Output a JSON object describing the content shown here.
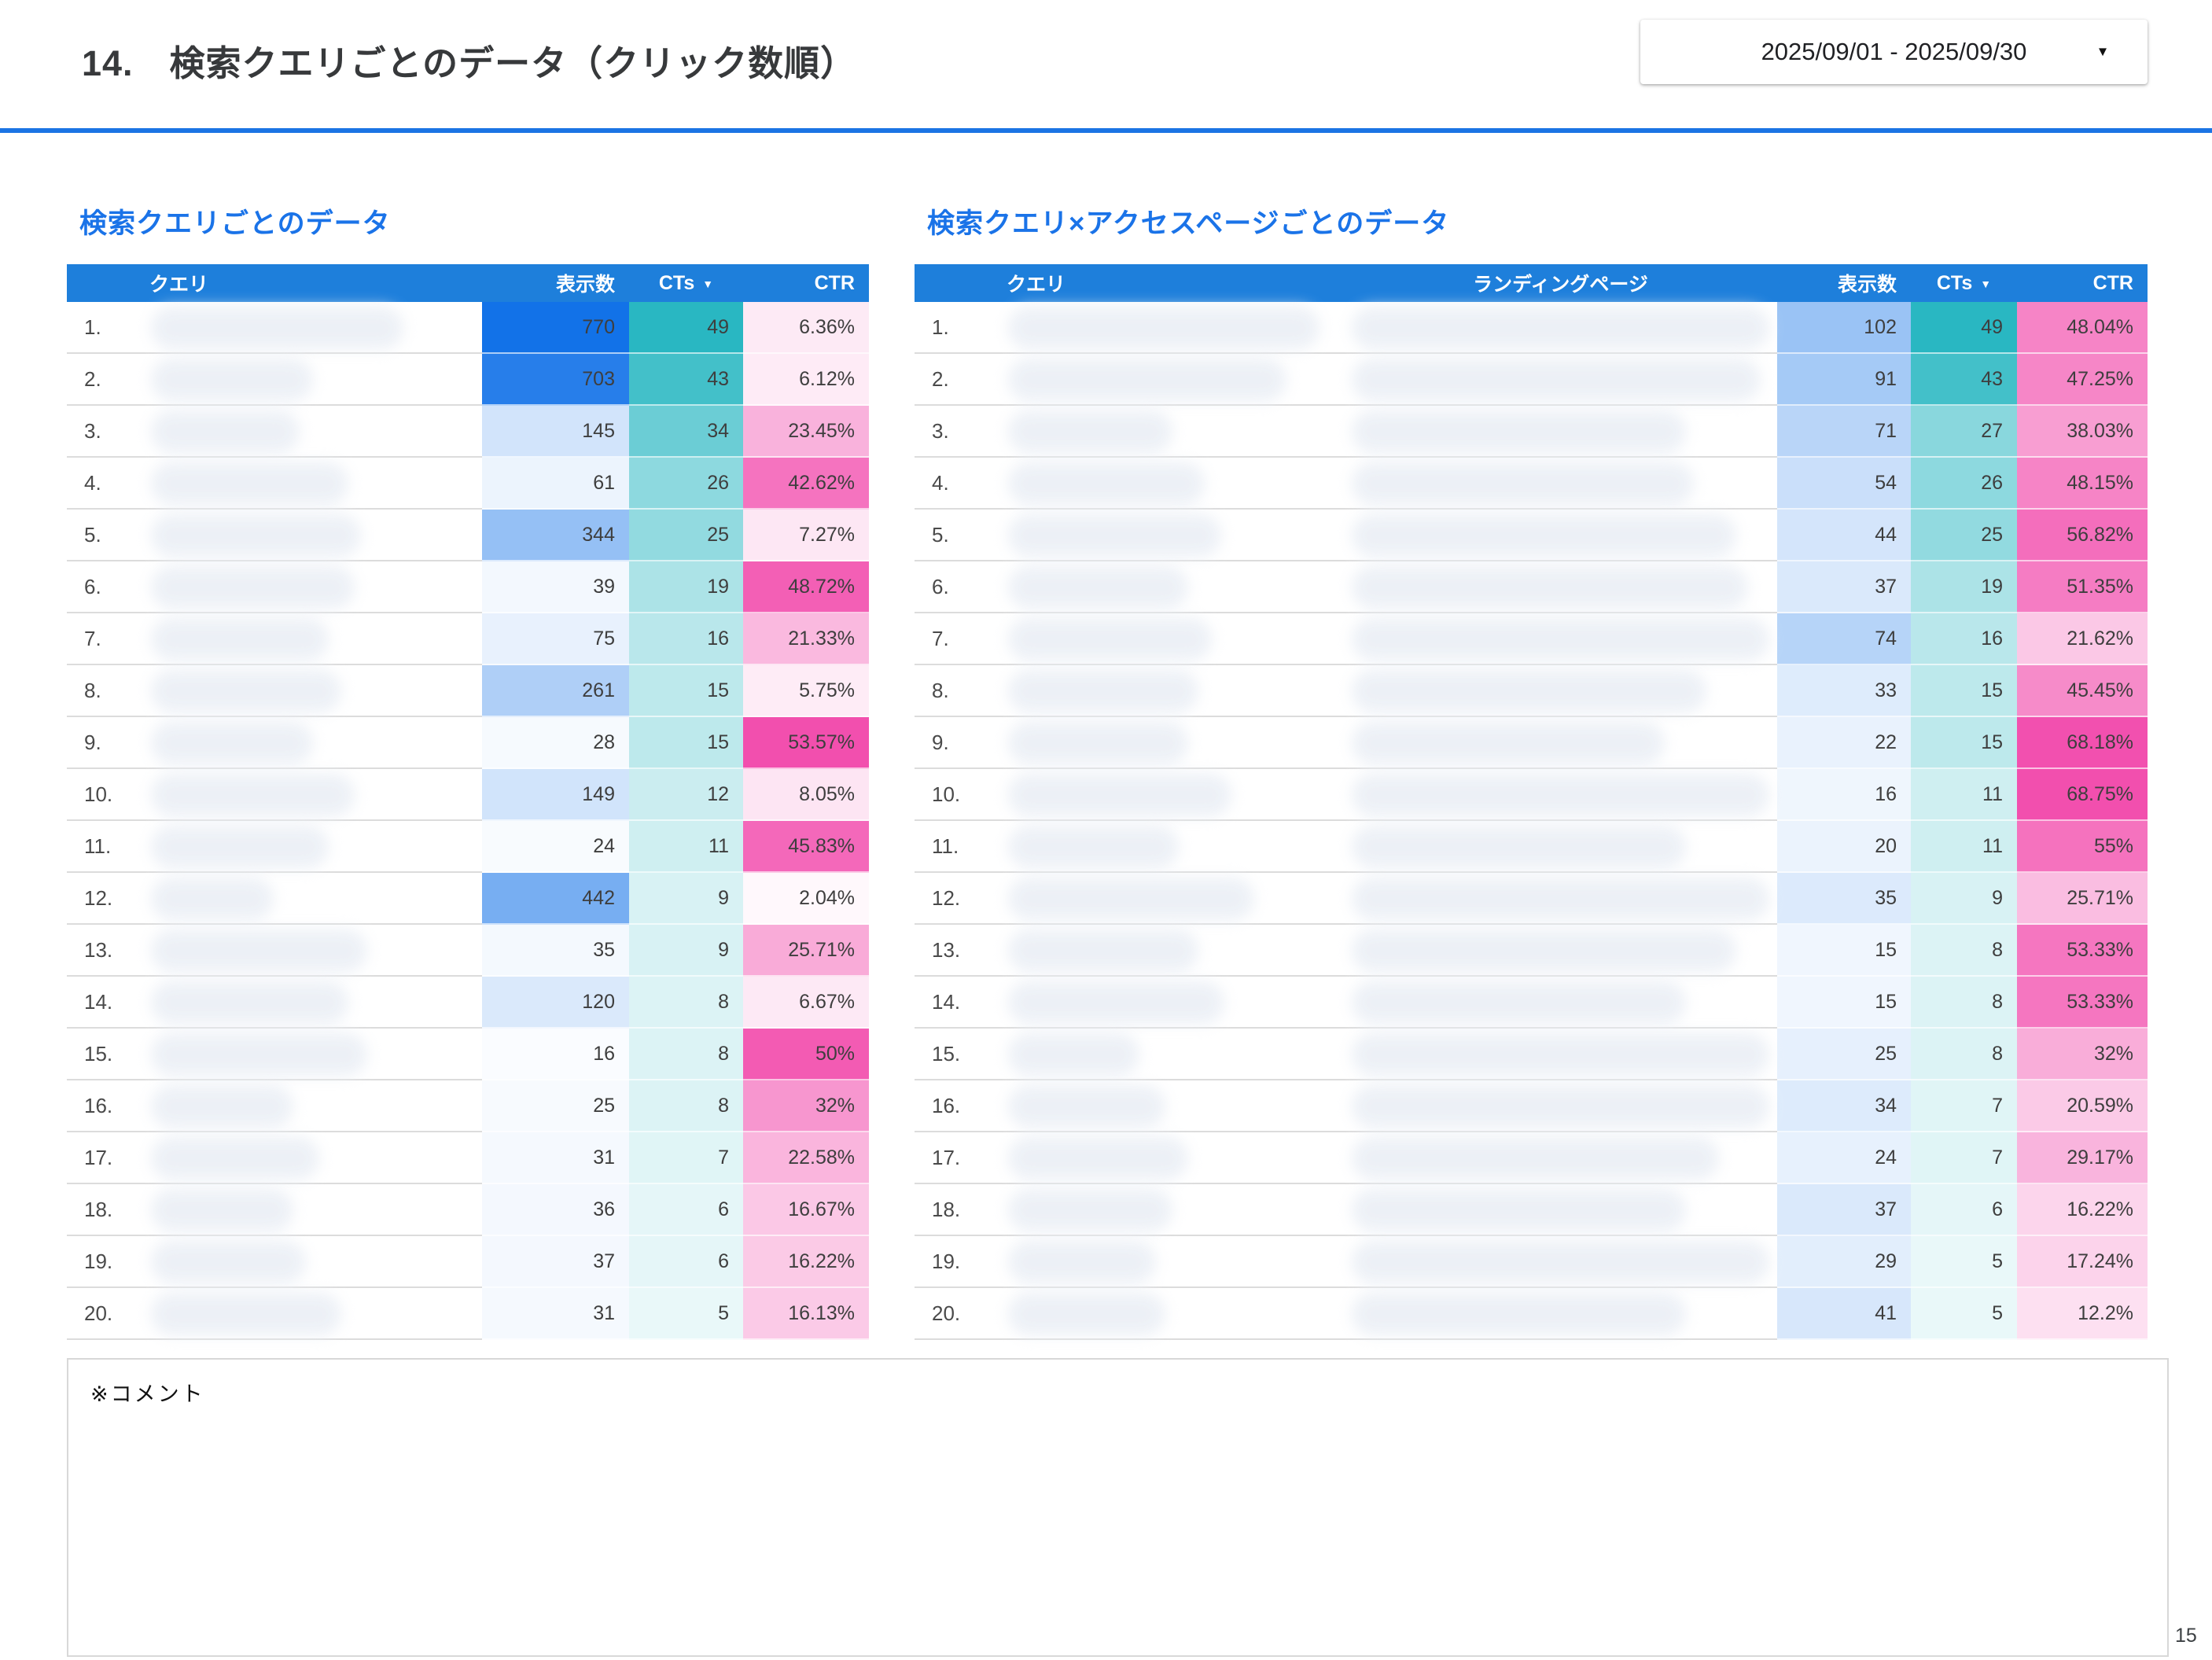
{
  "page": {
    "title": "14.　検索クエリごとのデータ（クリック数順）",
    "date_range": "2025/09/01 - 2025/09/30",
    "page_number": "15"
  },
  "ui": {
    "sort_caret": "▼",
    "date_caret": "▾"
  },
  "colors": {
    "header_bg": "#1E7FDB",
    "accent_blue": "#1A73E8",
    "heat_blue": "#1272E8",
    "heat_teal": "#29B7C2",
    "heat_pink": "#F24FAE"
  },
  "comment": {
    "label": "※コメント"
  },
  "left_table": {
    "title": "検索クエリごとのデータ",
    "columns": {
      "query": "クエリ",
      "impressions": "表示数",
      "cts": "CTs",
      "ctr": "CTR"
    },
    "sorted_by": "CTs",
    "query_column_blurred": true,
    "rows": [
      {
        "rank": "1.",
        "impressions": 770,
        "cts": 49,
        "ctr": "6.36%"
      },
      {
        "rank": "2.",
        "impressions": 703,
        "cts": 43,
        "ctr": "6.12%"
      },
      {
        "rank": "3.",
        "impressions": 145,
        "cts": 34,
        "ctr": "23.45%"
      },
      {
        "rank": "4.",
        "impressions": 61,
        "cts": 26,
        "ctr": "42.62%"
      },
      {
        "rank": "5.",
        "impressions": 344,
        "cts": 25,
        "ctr": "7.27%"
      },
      {
        "rank": "6.",
        "impressions": 39,
        "cts": 19,
        "ctr": "48.72%"
      },
      {
        "rank": "7.",
        "impressions": 75,
        "cts": 16,
        "ctr": "21.33%"
      },
      {
        "rank": "8.",
        "impressions": 261,
        "cts": 15,
        "ctr": "5.75%"
      },
      {
        "rank": "9.",
        "impressions": 28,
        "cts": 15,
        "ctr": "53.57%"
      },
      {
        "rank": "10.",
        "impressions": 149,
        "cts": 12,
        "ctr": "8.05%"
      },
      {
        "rank": "11.",
        "impressions": 24,
        "cts": 11,
        "ctr": "45.83%"
      },
      {
        "rank": "12.",
        "impressions": 442,
        "cts": 9,
        "ctr": "2.04%"
      },
      {
        "rank": "13.",
        "impressions": 35,
        "cts": 9,
        "ctr": "25.71%"
      },
      {
        "rank": "14.",
        "impressions": 120,
        "cts": 8,
        "ctr": "6.67%"
      },
      {
        "rank": "15.",
        "impressions": 16,
        "cts": 8,
        "ctr": "50%"
      },
      {
        "rank": "16.",
        "impressions": 25,
        "cts": 8,
        "ctr": "32%"
      },
      {
        "rank": "17.",
        "impressions": 31,
        "cts": 7,
        "ctr": "22.58%"
      },
      {
        "rank": "18.",
        "impressions": 36,
        "cts": 6,
        "ctr": "16.67%"
      },
      {
        "rank": "19.",
        "impressions": 37,
        "cts": 6,
        "ctr": "16.22%"
      },
      {
        "rank": "20.",
        "impressions": 31,
        "cts": 5,
        "ctr": "16.13%"
      }
    ]
  },
  "right_table": {
    "title": "検索クエリ×アクセスページごとのデータ",
    "columns": {
      "query": "クエリ",
      "landing": "ランディングページ",
      "impressions": "表示数",
      "cts": "CTs",
      "ctr": "CTR"
    },
    "sorted_by": "CTs",
    "query_column_blurred": true,
    "landing_column_blurred": true,
    "rows": [
      {
        "rank": "1.",
        "impressions": 102,
        "cts": 49,
        "ctr": "48.04%"
      },
      {
        "rank": "2.",
        "impressions": 91,
        "cts": 43,
        "ctr": "47.25%"
      },
      {
        "rank": "3.",
        "impressions": 71,
        "cts": 27,
        "ctr": "38.03%"
      },
      {
        "rank": "4.",
        "impressions": 54,
        "cts": 26,
        "ctr": "48.15%"
      },
      {
        "rank": "5.",
        "impressions": 44,
        "cts": 25,
        "ctr": "56.82%"
      },
      {
        "rank": "6.",
        "impressions": 37,
        "cts": 19,
        "ctr": "51.35%"
      },
      {
        "rank": "7.",
        "impressions": 74,
        "cts": 16,
        "ctr": "21.62%"
      },
      {
        "rank": "8.",
        "impressions": 33,
        "cts": 15,
        "ctr": "45.45%"
      },
      {
        "rank": "9.",
        "impressions": 22,
        "cts": 15,
        "ctr": "68.18%"
      },
      {
        "rank": "10.",
        "impressions": 16,
        "cts": 11,
        "ctr": "68.75%"
      },
      {
        "rank": "11.",
        "impressions": 20,
        "cts": 11,
        "ctr": "55%"
      },
      {
        "rank": "12.",
        "impressions": 35,
        "cts": 9,
        "ctr": "25.71%"
      },
      {
        "rank": "13.",
        "impressions": 15,
        "cts": 8,
        "ctr": "53.33%"
      },
      {
        "rank": "14.",
        "impressions": 15,
        "cts": 8,
        "ctr": "53.33%"
      },
      {
        "rank": "15.",
        "impressions": 25,
        "cts": 8,
        "ctr": "32%"
      },
      {
        "rank": "16.",
        "impressions": 34,
        "cts": 7,
        "ctr": "20.59%"
      },
      {
        "rank": "17.",
        "impressions": 24,
        "cts": 7,
        "ctr": "29.17%"
      },
      {
        "rank": "18.",
        "impressions": 37,
        "cts": 6,
        "ctr": "16.22%"
      },
      {
        "rank": "19.",
        "impressions": 29,
        "cts": 5,
        "ctr": "17.24%"
      },
      {
        "rank": "20.",
        "impressions": 41,
        "cts": 5,
        "ctr": "12.2%"
      }
    ]
  }
}
